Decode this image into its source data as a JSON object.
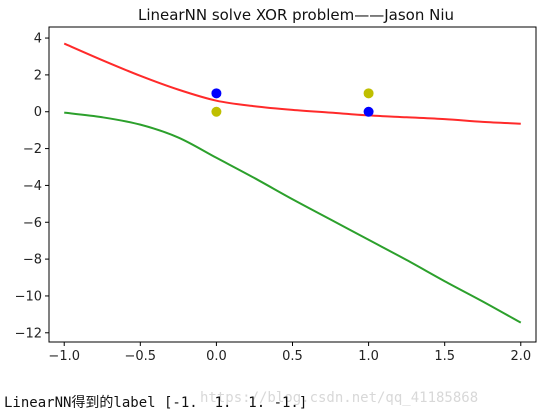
{
  "chart_data": {
    "type": "line",
    "title": "LinearNN solve  XOR problem——Jason Niu",
    "xlabel": "",
    "ylabel": "",
    "xlim": [
      -1.1,
      2.1
    ],
    "ylim": [
      -12.5,
      4.6
    ],
    "xticks": [
      -1.0,
      -0.5,
      0.0,
      0.5,
      1.0,
      1.5,
      2.0
    ],
    "xtick_labels": [
      "−1.0",
      "−0.5",
      "0.0",
      "0.5",
      "1.0",
      "1.5",
      "2.0"
    ],
    "yticks": [
      4,
      2,
      0,
      -2,
      -4,
      -6,
      -8,
      -10,
      -12
    ],
    "ytick_labels": [
      "4",
      "2",
      "0",
      "−2",
      "−4",
      "−6",
      "−8",
      "−10",
      "−12"
    ],
    "grid": false,
    "legend": "none",
    "lines": [
      {
        "color": "#ff2a2a",
        "x": [
          -1.0,
          -0.75,
          -0.5,
          -0.25,
          0.0,
          0.25,
          0.5,
          0.75,
          1.0,
          1.25,
          1.5,
          1.75,
          2.0
        ],
        "y": [
          3.7,
          2.8,
          1.95,
          1.2,
          0.6,
          0.3,
          0.1,
          -0.05,
          -0.2,
          -0.3,
          -0.4,
          -0.55,
          -0.65
        ]
      },
      {
        "color": "#2ca02c",
        "x": [
          -1.0,
          -0.75,
          -0.5,
          -0.25,
          0.0,
          0.25,
          0.5,
          0.75,
          1.0,
          1.25,
          1.5,
          1.75,
          2.0
        ],
        "y": [
          -0.05,
          -0.3,
          -0.7,
          -1.4,
          -2.5,
          -3.6,
          -4.75,
          -5.85,
          -6.95,
          -8.05,
          -9.2,
          -10.3,
          -11.45
        ]
      }
    ],
    "points": [
      {
        "x": 0,
        "y": 1,
        "color": "#0000ff"
      },
      {
        "x": 1,
        "y": 0,
        "color": "#0000ff"
      },
      {
        "x": 0,
        "y": 0,
        "color": "#bfbf00"
      },
      {
        "x": 1,
        "y": 1,
        "color": "#bfbf00"
      }
    ]
  },
  "output": {
    "text": "LinearNN得到的label [-1.  1.  1. -1.]",
    "watermark": "https://blog.csdn.net/qq_41185868"
  }
}
